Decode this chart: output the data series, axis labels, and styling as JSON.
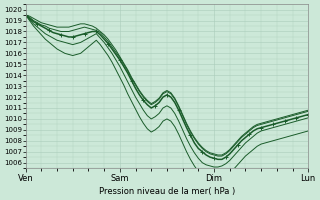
{
  "xlabel": "Pression niveau de la mer( hPa )",
  "ylim": [
    1006,
    1020
  ],
  "yticks": [
    1006,
    1007,
    1008,
    1009,
    1010,
    1011,
    1012,
    1013,
    1014,
    1015,
    1016,
    1017,
    1018,
    1019,
    1020
  ],
  "xtick_labels": [
    "Ven",
    "Sam",
    "Dim",
    "Lun"
  ],
  "xtick_positions": [
    0,
    1,
    2,
    3
  ],
  "bg_color": "#cce8d8",
  "grid_color": "#aaccbb",
  "line_color": "#1a5c2a",
  "n_hours": 73,
  "center_line": [
    1019.5,
    1019.2,
    1018.9,
    1018.7,
    1018.5,
    1018.3,
    1018.1,
    1017.9,
    1017.8,
    1017.7,
    1017.6,
    1017.5,
    1017.5,
    1017.6,
    1017.7,
    1017.8,
    1017.9,
    1018.0,
    1018.0,
    1017.7,
    1017.3,
    1016.9,
    1016.4,
    1015.9,
    1015.4,
    1014.8,
    1014.2,
    1013.5,
    1012.8,
    1012.2,
    1011.7,
    1011.3,
    1011.0,
    1011.2,
    1011.5,
    1012.0,
    1012.2,
    1012.0,
    1011.5,
    1010.8,
    1010.0,
    1009.2,
    1008.5,
    1007.8,
    1007.3,
    1007.0,
    1006.7,
    1006.5,
    1006.4,
    1006.3,
    1006.3,
    1006.5,
    1006.8,
    1007.2,
    1007.6,
    1008.0,
    1008.3,
    1008.6,
    1008.9,
    1009.1,
    1009.2,
    1009.3,
    1009.4,
    1009.5,
    1009.6,
    1009.7,
    1009.8,
    1009.9,
    1010.0,
    1010.1,
    1010.2,
    1010.3,
    1010.4
  ],
  "upper_band1": [
    1019.5,
    1019.3,
    1019.0,
    1018.8,
    1018.6,
    1018.5,
    1018.3,
    1018.2,
    1018.1,
    1018.0,
    1018.0,
    1018.0,
    1018.1,
    1018.2,
    1018.3,
    1018.4,
    1018.3,
    1018.2,
    1018.1,
    1017.9,
    1017.5,
    1017.1,
    1016.6,
    1016.1,
    1015.6,
    1015.0,
    1014.4,
    1013.7,
    1013.1,
    1012.5,
    1012.0,
    1011.6,
    1011.3,
    1011.5,
    1011.8,
    1012.3,
    1012.5,
    1012.3,
    1011.8,
    1011.1,
    1010.3,
    1009.5,
    1008.8,
    1008.2,
    1007.7,
    1007.3,
    1007.0,
    1006.8,
    1006.7,
    1006.6,
    1006.6,
    1006.8,
    1007.1,
    1007.5,
    1007.9,
    1008.3,
    1008.6,
    1008.9,
    1009.2,
    1009.4,
    1009.5,
    1009.6,
    1009.7,
    1009.8,
    1009.9,
    1010.0,
    1010.1,
    1010.2,
    1010.3,
    1010.4,
    1010.5,
    1010.6,
    1010.7
  ],
  "lower_band1": [
    1019.5,
    1019.1,
    1018.7,
    1018.4,
    1018.1,
    1017.8,
    1017.6,
    1017.4,
    1017.2,
    1017.1,
    1017.0,
    1016.9,
    1016.8,
    1016.9,
    1017.0,
    1017.2,
    1017.4,
    1017.6,
    1017.8,
    1017.4,
    1017.0,
    1016.5,
    1016.0,
    1015.4,
    1014.8,
    1014.1,
    1013.4,
    1012.7,
    1012.0,
    1011.4,
    1010.8,
    1010.3,
    1010.0,
    1010.2,
    1010.5,
    1011.0,
    1011.2,
    1011.0,
    1010.5,
    1009.8,
    1009.0,
    1008.2,
    1007.5,
    1006.9,
    1006.4,
    1006.0,
    1005.8,
    1005.7,
    1005.6,
    1005.6,
    1005.7,
    1005.9,
    1006.2,
    1006.6,
    1007.0,
    1007.4,
    1007.8,
    1008.1,
    1008.4,
    1008.7,
    1008.9,
    1009.0,
    1009.1,
    1009.2,
    1009.3,
    1009.4,
    1009.5,
    1009.6,
    1009.7,
    1009.8,
    1009.9,
    1010.0,
    1010.1
  ],
  "upper_band2": [
    1019.5,
    1019.4,
    1019.2,
    1019.0,
    1018.8,
    1018.7,
    1018.6,
    1018.5,
    1018.4,
    1018.4,
    1018.4,
    1018.4,
    1018.5,
    1018.6,
    1018.7,
    1018.7,
    1018.6,
    1018.5,
    1018.3,
    1018.0,
    1017.7,
    1017.3,
    1016.8,
    1016.3,
    1015.7,
    1015.1,
    1014.5,
    1013.8,
    1013.2,
    1012.6,
    1012.1,
    1011.7,
    1011.4,
    1011.6,
    1011.9,
    1012.4,
    1012.6,
    1012.4,
    1011.9,
    1011.2,
    1010.4,
    1009.6,
    1008.9,
    1008.3,
    1007.8,
    1007.4,
    1007.1,
    1006.9,
    1006.8,
    1006.7,
    1006.7,
    1006.9,
    1007.2,
    1007.6,
    1008.0,
    1008.4,
    1008.7,
    1009.0,
    1009.3,
    1009.5,
    1009.6,
    1009.7,
    1009.8,
    1009.9,
    1010.0,
    1010.1,
    1010.2,
    1010.3,
    1010.4,
    1010.5,
    1010.6,
    1010.7,
    1010.8
  ],
  "lower_band2": [
    1019.5,
    1019.0,
    1018.5,
    1018.1,
    1017.7,
    1017.3,
    1017.0,
    1016.7,
    1016.4,
    1016.2,
    1016.0,
    1015.9,
    1015.8,
    1015.9,
    1016.0,
    1016.3,
    1016.6,
    1016.9,
    1017.2,
    1016.8,
    1016.3,
    1015.8,
    1015.2,
    1014.5,
    1013.8,
    1013.1,
    1012.3,
    1011.6,
    1010.9,
    1010.2,
    1009.6,
    1009.1,
    1008.8,
    1009.0,
    1009.3,
    1009.8,
    1010.0,
    1009.8,
    1009.3,
    1008.6,
    1007.8,
    1007.0,
    1006.3,
    1005.7,
    1005.2,
    1004.8,
    1004.6,
    1004.5,
    1004.4,
    1004.4,
    1004.5,
    1004.7,
    1005.0,
    1005.4,
    1005.8,
    1006.2,
    1006.6,
    1006.9,
    1007.2,
    1007.5,
    1007.7,
    1007.8,
    1007.9,
    1008.0,
    1008.1,
    1008.2,
    1008.3,
    1008.4,
    1008.5,
    1008.6,
    1008.7,
    1008.8,
    1008.9
  ]
}
